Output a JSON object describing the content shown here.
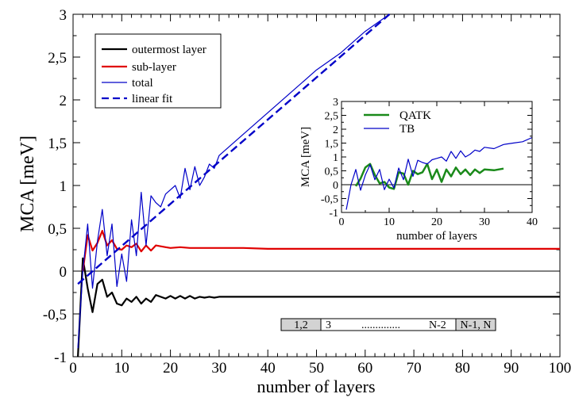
{
  "chart_data": [
    {
      "type": "line",
      "title": "",
      "xlabel": "number of layers",
      "ylabel": "MCA [meV]",
      "xlim": [
        0,
        100
      ],
      "ylim": [
        -1,
        3
      ],
      "xticks": [
        0,
        10,
        20,
        30,
        40,
        50,
        60,
        70,
        80,
        90,
        100
      ],
      "xtick_labels": [
        "0",
        "10",
        "20",
        "30",
        "40",
        "50",
        "60",
        "70",
        "80",
        "90",
        "100"
      ],
      "yticks": [
        -1,
        -0.5,
        0,
        0.5,
        1,
        1.5,
        2,
        2.5,
        3
      ],
      "ytick_labels": [
        "-1",
        "-0,5",
        "0",
        "0,5",
        "1",
        "1,5",
        "2",
        "2,5",
        "3"
      ],
      "legend_position": "top-left",
      "series": [
        {
          "name": "outermost layer",
          "color": "#000000",
          "x": [
            1,
            2,
            3,
            4,
            5,
            6,
            7,
            8,
            9,
            10,
            11,
            12,
            13,
            14,
            15,
            16,
            17,
            18,
            19,
            20,
            21,
            22,
            23,
            24,
            25,
            26,
            27,
            28,
            29,
            30,
            35,
            40,
            50,
            60,
            70,
            80,
            90,
            100
          ],
          "y": [
            -1.0,
            0.15,
            -0.2,
            -0.48,
            -0.15,
            -0.1,
            -0.3,
            -0.25,
            -0.38,
            -0.4,
            -0.32,
            -0.36,
            -0.3,
            -0.38,
            -0.32,
            -0.36,
            -0.28,
            -0.3,
            -0.32,
            -0.29,
            -0.32,
            -0.29,
            -0.32,
            -0.29,
            -0.32,
            -0.3,
            -0.31,
            -0.3,
            -0.31,
            -0.3,
            -0.3,
            -0.3,
            -0.3,
            -0.3,
            -0.3,
            -0.3,
            -0.3,
            -0.3
          ]
        },
        {
          "name": "sub-layer",
          "color": "#e00000",
          "x": [
            2,
            3,
            4,
            5,
            6,
            7,
            8,
            9,
            10,
            11,
            12,
            13,
            14,
            15,
            16,
            17,
            18,
            19,
            20,
            22,
            24,
            26,
            28,
            30,
            35,
            40,
            50,
            60,
            70,
            80,
            90,
            100
          ],
          "y": [
            0.0,
            0.42,
            0.24,
            0.33,
            0.47,
            0.3,
            0.36,
            0.26,
            0.25,
            0.3,
            0.28,
            0.32,
            0.23,
            0.3,
            0.24,
            0.3,
            0.29,
            0.28,
            0.27,
            0.28,
            0.27,
            0.27,
            0.27,
            0.27,
            0.27,
            0.26,
            0.26,
            0.26,
            0.26,
            0.26,
            0.26,
            0.26
          ]
        },
        {
          "name": "total",
          "color": "#0000c8",
          "x": [
            1,
            2,
            3,
            4,
            5,
            6,
            7,
            8,
            9,
            10,
            11,
            12,
            13,
            14,
            15,
            16,
            17,
            18,
            19,
            20,
            21,
            22,
            23,
            24,
            25,
            26,
            27,
            28,
            29,
            30,
            35,
            40,
            45,
            50,
            55,
            60,
            65
          ],
          "y": [
            -0.9,
            0.0,
            0.55,
            -0.2,
            0.35,
            0.72,
            0.18,
            0.55,
            -0.18,
            0.2,
            -0.12,
            0.6,
            0.18,
            0.92,
            0.3,
            0.88,
            0.8,
            0.75,
            0.9,
            0.95,
            1.0,
            0.85,
            1.2,
            0.95,
            1.22,
            1.0,
            1.1,
            1.25,
            1.2,
            1.35,
            1.6,
            1.85,
            2.1,
            2.35,
            2.55,
            2.8,
            3.0
          ]
        },
        {
          "name": "linear fit",
          "color": "#0000c8",
          "dashed": true,
          "x": [
            1,
            65
          ],
          "y": [
            -0.15,
            3.0
          ]
        }
      ],
      "annotation_boxes": [
        "1,2",
        "3",
        "..............",
        "N-2",
        "N-1, N"
      ]
    },
    {
      "type": "line",
      "title": "",
      "xlabel": "number of layers",
      "ylabel": "MCA [meV]",
      "xlim": [
        0,
        40
      ],
      "ylim": [
        -1,
        3
      ],
      "xticks": [
        0,
        10,
        20,
        30,
        40
      ],
      "xtick_labels": [
        "0",
        "10",
        "20",
        "30",
        "40"
      ],
      "yticks": [
        -1,
        -0.5,
        0,
        0.5,
        1,
        1.5,
        2,
        2.5,
        3
      ],
      "ytick_labels": [
        "-1",
        "-0,5",
        "0",
        "0,5",
        "1",
        "1,5",
        "2",
        "2,5",
        "3"
      ],
      "legend_position": "top-left",
      "series": [
        {
          "name": "QATK",
          "color": "#1a8a1a",
          "x": [
            3,
            4,
            5,
            6,
            7,
            8,
            9,
            10,
            11,
            12,
            13,
            14,
            15,
            16,
            17,
            18,
            19,
            20,
            21,
            22,
            23,
            24,
            25,
            26,
            27,
            28,
            29,
            30,
            32,
            34
          ],
          "y": [
            -0.05,
            0.22,
            0.62,
            0.75,
            0.35,
            0.05,
            0.1,
            -0.1,
            -0.15,
            0.45,
            0.4,
            0.0,
            0.5,
            0.38,
            0.45,
            0.75,
            0.2,
            0.55,
            0.1,
            0.55,
            0.3,
            0.62,
            0.38,
            0.55,
            0.35,
            0.55,
            0.42,
            0.55,
            0.52,
            0.58
          ]
        },
        {
          "name": "TB",
          "color": "#0000c8",
          "x": [
            1,
            2,
            3,
            4,
            5,
            6,
            7,
            8,
            9,
            10,
            11,
            12,
            13,
            14,
            15,
            16,
            17,
            18,
            19,
            20,
            21,
            22,
            23,
            24,
            25,
            26,
            27,
            28,
            29,
            30,
            32,
            34,
            36,
            38,
            40
          ],
          "y": [
            -0.9,
            0.0,
            0.55,
            -0.2,
            0.35,
            0.72,
            0.18,
            0.55,
            -0.18,
            0.2,
            -0.12,
            0.6,
            0.18,
            0.92,
            0.3,
            0.88,
            0.8,
            0.75,
            0.9,
            0.95,
            1.0,
            0.85,
            1.2,
            0.95,
            1.22,
            1.0,
            1.1,
            1.25,
            1.2,
            1.35,
            1.3,
            1.45,
            1.5,
            1.55,
            1.7
          ]
        }
      ]
    }
  ]
}
